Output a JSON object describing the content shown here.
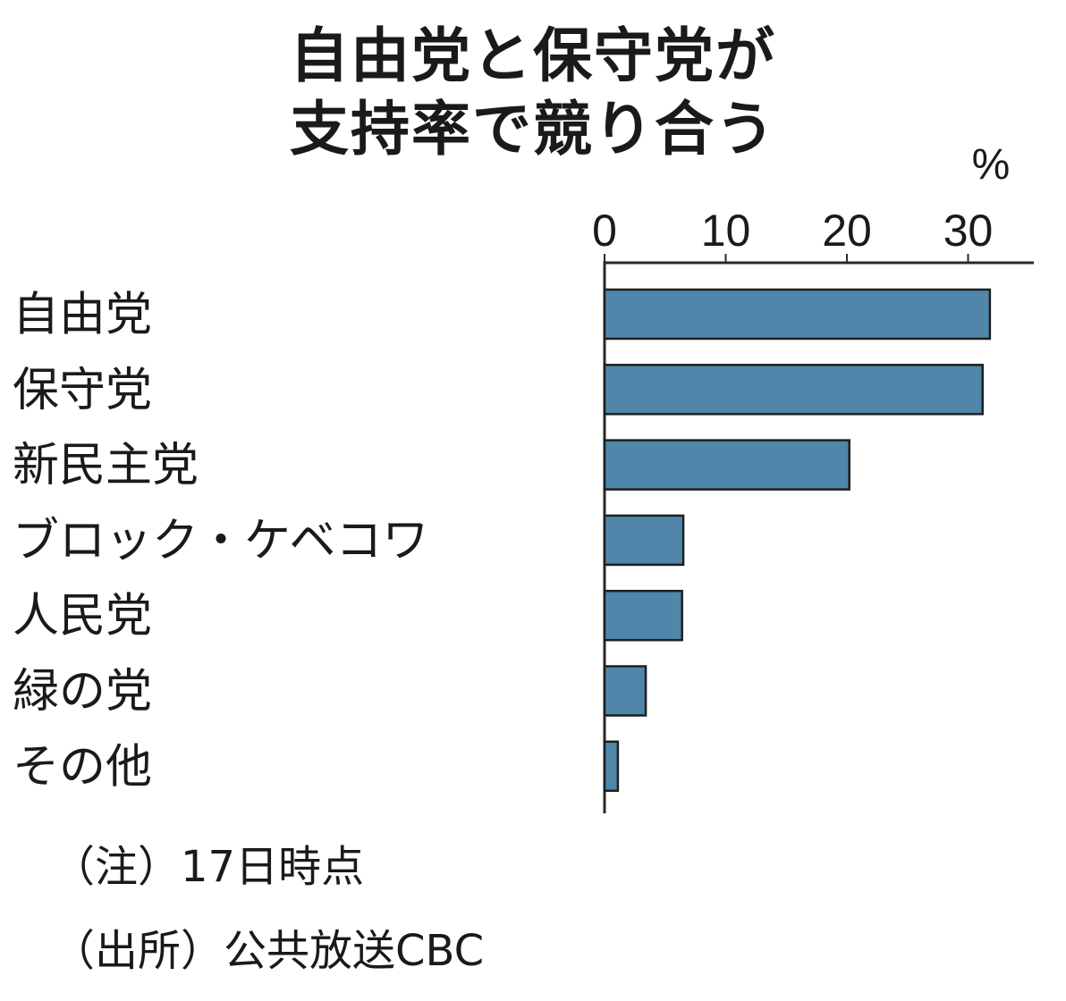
{
  "title_lines": [
    "自由党と保守党が",
    "支持率で競り合う"
  ],
  "unit": "%",
  "notes": {
    "note1": "（注）17日時点",
    "note2": "（出所）公共放送CBC"
  },
  "colors": {
    "bar": "#4f86aa",
    "bar_stroke": "#1f1f1f",
    "axis": "#2a2a2a",
    "text": "#1a1a1a"
  },
  "chart_data": {
    "type": "bar",
    "orientation": "horizontal",
    "title": "自由党と保守党が支持率で競り合う",
    "unit": "%",
    "xlim": [
      0,
      35
    ],
    "xticks": [
      0,
      10,
      20,
      30
    ],
    "grid": false,
    "categories": [
      "自由党",
      "保守党",
      "新民主党",
      "ブロック・ケベコワ",
      "人民党",
      "緑の党",
      "その他"
    ],
    "values": [
      31.8,
      31.2,
      20.2,
      6.5,
      6.4,
      3.4,
      1.1
    ]
  }
}
